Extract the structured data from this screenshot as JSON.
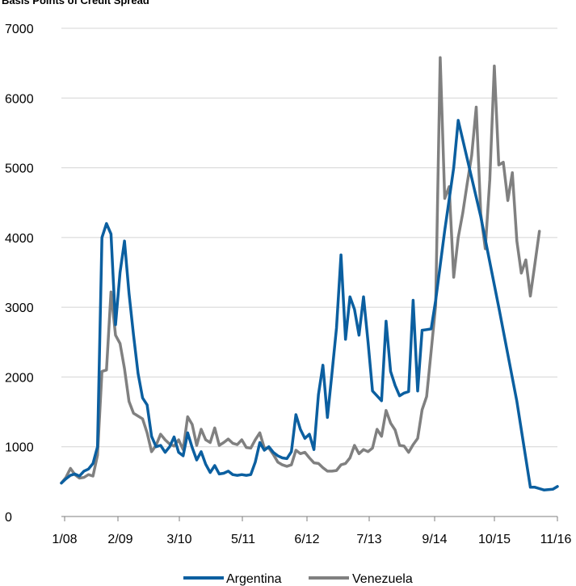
{
  "chart_data": {
    "type": "line",
    "title": "Basis Points of Credit Spread",
    "xlabel": "",
    "ylabel": "",
    "ylim": [
      0,
      7000
    ],
    "yticks": [
      0,
      1000,
      2000,
      3000,
      4000,
      5000,
      6000,
      7000
    ],
    "xticks": [
      "1/08",
      "2/09",
      "3/10",
      "5/11",
      "6/12",
      "7/13",
      "9/14",
      "10/15",
      "11/16"
    ],
    "grid": "horizontal",
    "legend": "bottom",
    "series": [
      {
        "name": "Argentina",
        "color": "#0b5fa0",
        "points": [
          [
            0,
            480
          ],
          [
            1,
            540
          ],
          [
            2,
            590
          ],
          [
            3,
            610
          ],
          [
            4,
            580
          ],
          [
            5,
            650
          ],
          [
            6,
            680
          ],
          [
            7,
            760
          ],
          [
            8,
            1000
          ],
          [
            9,
            4000
          ],
          [
            10,
            4200
          ],
          [
            11,
            4050
          ],
          [
            12,
            2750
          ],
          [
            13,
            3500
          ],
          [
            14,
            3950
          ],
          [
            15,
            3200
          ],
          [
            16,
            2600
          ],
          [
            17,
            2050
          ],
          [
            18,
            1700
          ],
          [
            19,
            1600
          ],
          [
            20,
            1150
          ],
          [
            21,
            1000
          ],
          [
            22,
            1020
          ],
          [
            23,
            920
          ],
          [
            24,
            1000
          ],
          [
            25,
            1140
          ],
          [
            26,
            920
          ],
          [
            27,
            870
          ],
          [
            28,
            1200
          ],
          [
            29,
            990
          ],
          [
            30,
            810
          ],
          [
            31,
            930
          ],
          [
            32,
            750
          ],
          [
            33,
            630
          ],
          [
            34,
            730
          ],
          [
            35,
            610
          ],
          [
            36,
            620
          ],
          [
            37,
            650
          ],
          [
            38,
            600
          ],
          [
            39,
            590
          ],
          [
            40,
            600
          ],
          [
            41,
            590
          ],
          [
            42,
            600
          ],
          [
            43,
            780
          ],
          [
            44,
            1060
          ],
          [
            45,
            950
          ],
          [
            46,
            1000
          ],
          [
            47,
            920
          ],
          [
            48,
            870
          ],
          [
            49,
            840
          ],
          [
            50,
            830
          ],
          [
            51,
            930
          ],
          [
            52,
            1460
          ],
          [
            53,
            1250
          ],
          [
            54,
            1120
          ],
          [
            55,
            1180
          ],
          [
            56,
            960
          ],
          [
            57,
            1750
          ],
          [
            58,
            2170
          ],
          [
            59,
            1420
          ],
          [
            60,
            2050
          ],
          [
            61,
            2700
          ],
          [
            62,
            3750
          ],
          [
            63,
            2540
          ],
          [
            64,
            3150
          ],
          [
            65,
            2970
          ],
          [
            66,
            2600
          ],
          [
            67,
            3150
          ],
          [
            68,
            2500
          ],
          [
            69,
            1800
          ],
          [
            70,
            1730
          ],
          [
            71,
            1660
          ],
          [
            72,
            2800
          ],
          [
            73,
            2080
          ],
          [
            74,
            1880
          ],
          [
            75,
            1730
          ],
          [
            76,
            1770
          ],
          [
            77,
            1790
          ],
          [
            78,
            3100
          ],
          [
            79,
            1800
          ],
          [
            80,
            2670
          ],
          [
            81,
            2680
          ],
          [
            82,
            2690
          ],
          [
            83,
            3100
          ],
          [
            85,
            4100
          ],
          [
            87,
            5000
          ],
          [
            88,
            5680
          ],
          [
            93,
            4300
          ],
          [
            97,
            3000
          ],
          [
            101,
            1650
          ],
          [
            104,
            420
          ],
          [
            105,
            420
          ],
          [
            106,
            400
          ],
          [
            107,
            380
          ],
          [
            108,
            385
          ],
          [
            109,
            390
          ],
          [
            110,
            430
          ]
        ]
      },
      {
        "name": "Venezuela",
        "color": "#808080",
        "points": [
          [
            0,
            480
          ],
          [
            1,
            560
          ],
          [
            2,
            690
          ],
          [
            3,
            600
          ],
          [
            4,
            550
          ],
          [
            5,
            560
          ],
          [
            6,
            600
          ],
          [
            7,
            580
          ],
          [
            8,
            880
          ],
          [
            9,
            2080
          ],
          [
            10,
            2100
          ],
          [
            11,
            3220
          ],
          [
            12,
            2600
          ],
          [
            13,
            2480
          ],
          [
            14,
            2120
          ],
          [
            15,
            1650
          ],
          [
            16,
            1480
          ],
          [
            17,
            1440
          ],
          [
            18,
            1400
          ],
          [
            19,
            1200
          ],
          [
            20,
            930
          ],
          [
            21,
            1020
          ],
          [
            22,
            1180
          ],
          [
            23,
            1100
          ],
          [
            24,
            1040
          ],
          [
            25,
            1010
          ],
          [
            26,
            1100
          ],
          [
            27,
            960
          ],
          [
            28,
            1430
          ],
          [
            29,
            1320
          ],
          [
            30,
            1020
          ],
          [
            31,
            1250
          ],
          [
            32,
            1100
          ],
          [
            33,
            1060
          ],
          [
            34,
            1270
          ],
          [
            35,
            1020
          ],
          [
            36,
            1060
          ],
          [
            37,
            1110
          ],
          [
            38,
            1050
          ],
          [
            39,
            1030
          ],
          [
            40,
            1100
          ],
          [
            41,
            990
          ],
          [
            42,
            980
          ],
          [
            43,
            1100
          ],
          [
            44,
            1200
          ],
          [
            45,
            980
          ],
          [
            46,
            980
          ],
          [
            47,
            890
          ],
          [
            48,
            780
          ],
          [
            49,
            740
          ],
          [
            50,
            720
          ],
          [
            51,
            740
          ],
          [
            52,
            950
          ],
          [
            53,
            900
          ],
          [
            54,
            920
          ],
          [
            55,
            840
          ],
          [
            56,
            770
          ],
          [
            57,
            760
          ],
          [
            58,
            700
          ],
          [
            59,
            650
          ],
          [
            60,
            650
          ],
          [
            61,
            660
          ],
          [
            62,
            740
          ],
          [
            63,
            760
          ],
          [
            64,
            840
          ],
          [
            65,
            1020
          ],
          [
            66,
            900
          ],
          [
            67,
            960
          ],
          [
            68,
            930
          ],
          [
            69,
            980
          ],
          [
            70,
            1250
          ],
          [
            71,
            1150
          ],
          [
            72,
            1520
          ],
          [
            73,
            1340
          ],
          [
            74,
            1240
          ],
          [
            75,
            1020
          ],
          [
            76,
            1010
          ],
          [
            77,
            920
          ],
          [
            78,
            1030
          ],
          [
            79,
            1120
          ],
          [
            80,
            1530
          ],
          [
            81,
            1720
          ],
          [
            82,
            2370
          ],
          [
            83,
            3030
          ],
          [
            84,
            6580
          ],
          [
            85,
            4560
          ],
          [
            86,
            4730
          ],
          [
            87,
            3430
          ],
          [
            88,
            4000
          ],
          [
            89,
            4350
          ],
          [
            90,
            4780
          ],
          [
            91,
            5180
          ],
          [
            92,
            5870
          ],
          [
            93,
            4340
          ],
          [
            94,
            3840
          ],
          [
            95,
            4830
          ],
          [
            96,
            6460
          ],
          [
            97,
            5040
          ],
          [
            98,
            5080
          ],
          [
            99,
            4530
          ],
          [
            100,
            4930
          ],
          [
            101,
            3950
          ],
          [
            102,
            3490
          ],
          [
            103,
            3680
          ],
          [
            104,
            3160
          ],
          [
            105,
            3620
          ],
          [
            106,
            4090
          ]
        ]
      }
    ]
  }
}
